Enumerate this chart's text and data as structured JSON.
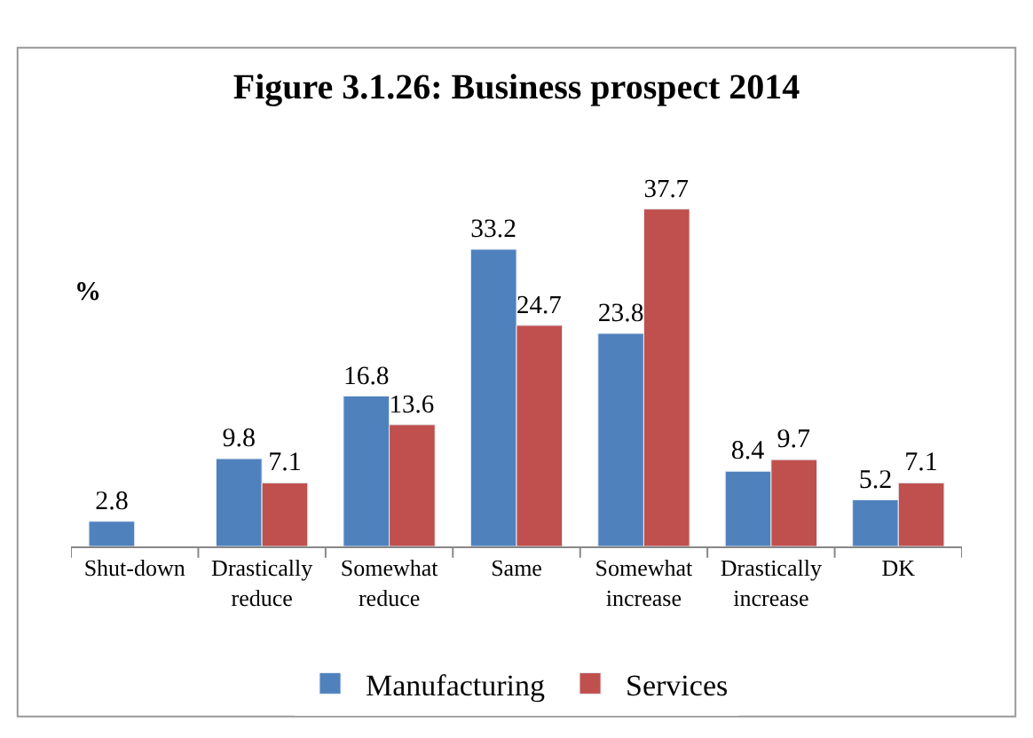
{
  "chart_data": {
    "type": "bar",
    "title": "Figure 3.1.26: Business prospect 2014",
    "ylabel": "%",
    "categories": [
      "Shut-down",
      "Drastically reduce",
      "Somewhat reduce",
      "Same",
      "Somewhat increase",
      "Drastically increase",
      "DK"
    ],
    "series": [
      {
        "name": "Manufacturing",
        "color": "#4f81bd",
        "values": [
          2.8,
          9.8,
          16.8,
          33.2,
          23.8,
          8.4,
          5.2
        ]
      },
      {
        "name": "Services",
        "color": "#c0504d",
        "values": [
          null,
          7.1,
          13.6,
          24.7,
          37.7,
          9.7,
          7.1
        ]
      }
    ],
    "data_labels": true,
    "legend": "bottom"
  }
}
